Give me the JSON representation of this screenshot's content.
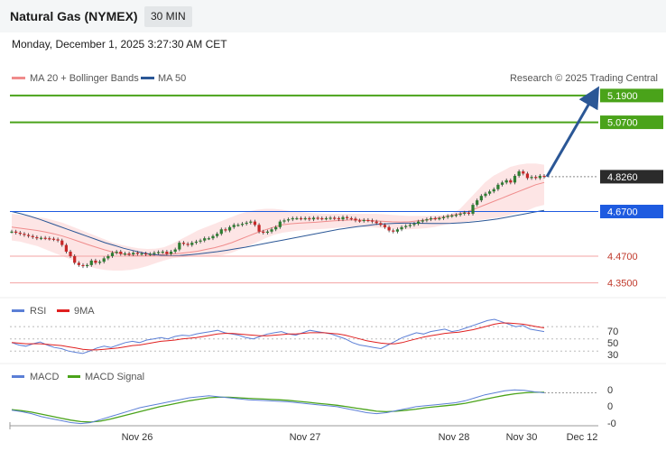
{
  "header": {
    "title": "Natural Gas (NYMEX)",
    "timeframe": "30 MIN"
  },
  "datetime": "Monday, December 1, 2025 3:27:30 AM CET",
  "legend": {
    "bollinger": "MA 20 + Bollinger Bands",
    "ma50": "MA 50"
  },
  "copyright": "Research © 2025 Trading Central",
  "colors": {
    "resistance": "#4aa31a",
    "pivot": "#1e5be0",
    "support": "#f3a3a3",
    "current": "#2b2b2b",
    "arrow": "#2b5796",
    "rsi": "#5b7fd6",
    "ma9": "#e02020",
    "macd": "#5b7fd6",
    "macd_signal": "#4aa31a"
  },
  "chart_data": [
    {
      "type": "candlestick",
      "title": "Natural Gas (NYMEX)",
      "x_labels": [
        "Nov 26",
        "Nov 27",
        "Nov 28",
        "Nov 30",
        "Dec 12"
      ],
      "ylim": [
        4.3,
        5.23
      ],
      "levels": [
        {
          "label": "5.1900",
          "value": 5.19,
          "kind": "resistance"
        },
        {
          "label": "5.0700",
          "value": 5.07,
          "kind": "resistance"
        },
        {
          "label": "4.8260",
          "value": 4.826,
          "kind": "current"
        },
        {
          "label": "4.6700",
          "value": 4.67,
          "kind": "pivot"
        },
        {
          "label": "4.4700",
          "value": 4.47,
          "kind": "support"
        },
        {
          "label": "4.3500",
          "value": 4.35,
          "kind": "support"
        }
      ],
      "close": [
        4.58,
        4.575,
        4.57,
        4.565,
        4.56,
        4.555,
        4.55,
        4.552,
        4.55,
        4.548,
        4.545,
        4.54,
        4.52,
        4.49,
        4.47,
        4.44,
        4.43,
        4.425,
        4.43,
        4.45,
        4.44,
        4.445,
        4.46,
        4.47,
        4.485,
        4.49,
        4.48,
        4.482,
        4.478,
        4.485,
        4.48,
        4.482,
        4.478,
        4.48,
        4.485,
        4.488,
        4.49,
        4.48,
        4.49,
        4.5,
        4.53,
        4.525,
        4.52,
        4.53,
        4.535,
        4.54,
        4.55,
        4.55,
        4.56,
        4.57,
        4.59,
        4.585,
        4.6,
        4.61,
        4.61,
        4.615,
        4.62,
        4.625,
        4.61,
        4.58,
        4.575,
        4.58,
        4.59,
        4.6,
        4.625,
        4.63,
        4.635,
        4.64,
        4.64,
        4.638,
        4.64,
        4.635,
        4.642,
        4.64,
        4.638,
        4.64,
        4.642,
        4.64,
        4.635,
        4.645,
        4.64,
        4.638,
        4.63,
        4.628,
        4.632,
        4.63,
        4.625,
        4.618,
        4.61,
        4.6,
        4.585,
        4.58,
        4.59,
        4.6,
        4.605,
        4.61,
        4.615,
        4.625,
        4.63,
        4.635,
        4.64,
        4.638,
        4.64,
        4.645,
        4.65,
        4.652,
        4.655,
        4.66,
        4.665,
        4.66,
        4.7,
        4.72,
        4.74,
        4.75,
        4.76,
        4.77,
        4.79,
        4.8,
        4.81,
        4.8,
        4.83,
        4.85,
        4.84,
        4.82,
        4.825,
        4.82,
        4.83,
        4.826
      ],
      "bollinger_mid": [
        4.6,
        4.595,
        4.59,
        4.585,
        4.578,
        4.57,
        4.56,
        4.548,
        4.535,
        4.522,
        4.51,
        4.498,
        4.488,
        4.48,
        4.475,
        4.472,
        4.472,
        4.475,
        4.478,
        4.48,
        4.483,
        4.487,
        4.492,
        4.5,
        4.508,
        4.518,
        4.53,
        4.545,
        4.56,
        4.575,
        4.588,
        4.6,
        4.61,
        4.615,
        4.618,
        4.62,
        4.622,
        4.625,
        4.628,
        4.63,
        4.632,
        4.632,
        4.63,
        4.628,
        4.626,
        4.624,
        4.623,
        4.624,
        4.628,
        4.632,
        4.638,
        4.645,
        4.652,
        4.66,
        4.67,
        4.685,
        4.7,
        4.715,
        4.73,
        4.745,
        4.76,
        4.775,
        4.79,
        4.8
      ],
      "bollinger_upper": [
        4.66,
        4.655,
        4.65,
        4.645,
        4.64,
        4.63,
        4.62,
        4.605,
        4.59,
        4.575,
        4.56,
        4.545,
        4.53,
        4.52,
        4.512,
        4.505,
        4.502,
        4.503,
        4.51,
        4.525,
        4.545,
        4.565,
        4.585,
        4.6,
        4.615,
        4.63,
        4.645,
        4.66,
        4.67,
        4.678,
        4.682,
        4.682,
        4.678,
        4.672,
        4.668,
        4.665,
        4.662,
        4.66,
        4.66,
        4.66,
        4.66,
        4.66,
        4.66,
        4.66,
        4.658,
        4.655,
        4.652,
        4.65,
        4.65,
        4.65,
        4.652,
        4.655,
        4.66,
        4.68,
        4.72,
        4.76,
        4.8,
        4.83,
        4.85,
        4.87,
        4.88,
        4.885,
        4.885,
        4.88
      ],
      "bollinger_lower": [
        4.54,
        4.535,
        4.525,
        4.515,
        4.5,
        4.485,
        4.47,
        4.455,
        4.44,
        4.425,
        4.415,
        4.408,
        4.405,
        4.405,
        4.408,
        4.415,
        4.425,
        4.438,
        4.45,
        4.46,
        4.465,
        4.468,
        4.47,
        4.47,
        4.47,
        4.475,
        4.485,
        4.5,
        4.515,
        4.532,
        4.55,
        4.565,
        4.575,
        4.58,
        4.585,
        4.588,
        4.59,
        4.592,
        4.595,
        4.598,
        4.6,
        4.602,
        4.6,
        4.598,
        4.595,
        4.592,
        4.59,
        4.59,
        4.592,
        4.595,
        4.6,
        4.608,
        4.615,
        4.62,
        4.625,
        4.63,
        4.635,
        4.64,
        4.645,
        4.655,
        4.665,
        4.675,
        4.69,
        4.7
      ],
      "ma50": [
        4.67,
        4.66,
        4.648,
        4.635,
        4.62,
        4.605,
        4.59,
        4.575,
        4.56,
        4.545,
        4.53,
        4.518,
        4.505,
        4.495,
        4.485,
        4.478,
        4.474,
        4.472,
        4.473,
        4.476,
        4.48,
        4.485,
        4.49,
        4.496,
        4.503,
        4.51,
        4.518,
        4.526,
        4.534,
        4.542,
        4.55,
        4.558,
        4.566,
        4.574,
        4.582,
        4.59,
        4.596,
        4.602,
        4.607,
        4.612,
        4.615,
        4.617,
        4.618,
        4.618,
        4.617,
        4.616,
        4.616,
        4.617,
        4.619,
        4.622,
        4.626,
        4.631,
        4.637,
        4.644,
        4.652,
        4.66,
        4.668,
        4.675
      ],
      "arrow_target": 5.19
    },
    {
      "type": "line",
      "title": "RSI",
      "ticks": [
        "70",
        "50",
        "30"
      ],
      "series": [
        {
          "name": "RSI",
          "values": [
            44,
            40,
            38,
            42,
            45,
            40,
            36,
            34,
            30,
            28,
            26,
            30,
            35,
            38,
            36,
            40,
            44,
            46,
            44,
            48,
            50,
            52,
            50,
            54,
            56,
            55,
            58,
            60,
            62,
            64,
            60,
            58,
            56,
            52,
            50,
            54,
            58,
            60,
            62,
            58,
            56,
            60,
            64,
            62,
            60,
            58,
            54,
            50,
            44,
            40,
            38,
            36,
            34,
            40,
            46,
            52,
            56,
            60,
            58,
            62,
            64,
            66,
            62,
            64,
            68,
            72,
            76,
            80,
            82,
            78,
            74,
            70,
            72,
            66,
            64,
            62
          ]
        },
        {
          "name": "9MA",
          "values": [
            44,
            43,
            42,
            42,
            42,
            41,
            40,
            39,
            37,
            35,
            33,
            32,
            32,
            33,
            34,
            35,
            37,
            39,
            40,
            42,
            44,
            46,
            47,
            48,
            50,
            51,
            52,
            54,
            56,
            58,
            59,
            59,
            58,
            57,
            56,
            55,
            55,
            56,
            57,
            58,
            58,
            59,
            60,
            60,
            60,
            59,
            58,
            56,
            53,
            50,
            47,
            45,
            43,
            42,
            42,
            44,
            47,
            50,
            53,
            55,
            57,
            59,
            60,
            61,
            63,
            65,
            68,
            71,
            74,
            76,
            76,
            75,
            74,
            72,
            70,
            68
          ]
        }
      ]
    },
    {
      "type": "line",
      "title": "MACD",
      "ticks": [
        "0",
        "0",
        "-0"
      ],
      "series": [
        {
          "name": "MACD",
          "values": [
            -0.005,
            -0.008,
            -0.012,
            -0.018,
            -0.022,
            -0.026,
            -0.03,
            -0.032,
            -0.03,
            -0.024,
            -0.018,
            -0.012,
            -0.006,
            0.0,
            0.004,
            0.008,
            0.012,
            0.016,
            0.02,
            0.022,
            0.024,
            0.022,
            0.02,
            0.018,
            0.016,
            0.015,
            0.014,
            0.013,
            0.012,
            0.01,
            0.008,
            0.006,
            0.004,
            0.002,
            -0.002,
            -0.006,
            -0.01,
            -0.012,
            -0.01,
            -0.006,
            -0.002,
            0.002,
            0.004,
            0.006,
            0.008,
            0.01,
            0.014,
            0.02,
            0.026,
            0.03,
            0.034,
            0.036,
            0.035,
            0.032,
            0.03
          ]
        },
        {
          "name": "MACD Signal",
          "values": [
            -0.004,
            -0.006,
            -0.009,
            -0.013,
            -0.017,
            -0.021,
            -0.025,
            -0.028,
            -0.029,
            -0.027,
            -0.023,
            -0.018,
            -0.013,
            -0.008,
            -0.003,
            0.002,
            0.006,
            0.01,
            0.014,
            0.017,
            0.02,
            0.021,
            0.021,
            0.02,
            0.019,
            0.018,
            0.017,
            0.016,
            0.015,
            0.013,
            0.011,
            0.009,
            0.007,
            0.005,
            0.002,
            -0.001,
            -0.004,
            -0.007,
            -0.008,
            -0.007,
            -0.005,
            -0.003,
            0.0,
            0.002,
            0.004,
            0.006,
            0.009,
            0.013,
            0.017,
            0.021,
            0.025,
            0.028,
            0.03,
            0.031,
            0.031
          ]
        }
      ]
    }
  ]
}
